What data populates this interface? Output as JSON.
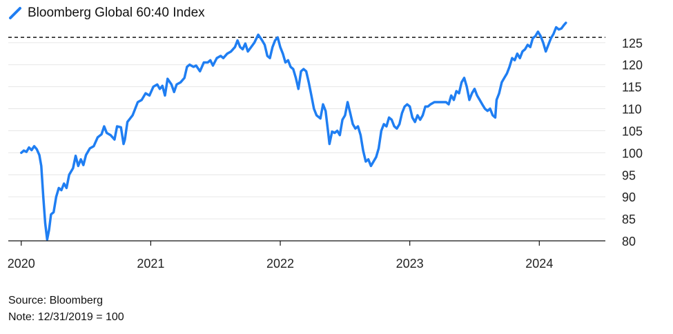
{
  "chart_data": {
    "type": "line",
    "title": "",
    "xlabel": "",
    "ylabel": "",
    "series": [
      {
        "name": "Bloomberg Global 60:40 Index",
        "color": "#1f7ef2",
        "points": [
          [
            2020.0,
            100.0
          ],
          [
            2020.02,
            100.5
          ],
          [
            2020.04,
            100.2
          ],
          [
            2020.06,
            101.2
          ],
          [
            2020.08,
            100.6
          ],
          [
            2020.1,
            101.5
          ],
          [
            2020.12,
            100.8
          ],
          [
            2020.14,
            99.5
          ],
          [
            2020.155,
            97.0
          ],
          [
            2020.17,
            90.0
          ],
          [
            2020.185,
            84.0
          ],
          [
            2020.2,
            80.3
          ],
          [
            2020.215,
            82.5
          ],
          [
            2020.23,
            86.0
          ],
          [
            2020.25,
            86.5
          ],
          [
            2020.27,
            90.0
          ],
          [
            2020.29,
            92.0
          ],
          [
            2020.31,
            91.5
          ],
          [
            2020.33,
            93.0
          ],
          [
            2020.35,
            92.0
          ],
          [
            2020.37,
            95.0
          ],
          [
            2020.4,
            96.5
          ],
          [
            2020.42,
            99.3
          ],
          [
            2020.44,
            97.0
          ],
          [
            2020.46,
            98.5
          ],
          [
            2020.48,
            97.2
          ],
          [
            2020.5,
            99.5
          ],
          [
            2020.53,
            101.0
          ],
          [
            2020.56,
            101.5
          ],
          [
            2020.59,
            103.5
          ],
          [
            2020.62,
            104.2
          ],
          [
            2020.64,
            106.0
          ],
          [
            2020.66,
            104.5
          ],
          [
            2020.69,
            104.0
          ],
          [
            2020.72,
            103.0
          ],
          [
            2020.74,
            106.0
          ],
          [
            2020.77,
            105.8
          ],
          [
            2020.79,
            102.0
          ],
          [
            2020.8,
            103.0
          ],
          [
            2020.82,
            107.0
          ],
          [
            2020.86,
            108.5
          ],
          [
            2020.9,
            111.5
          ],
          [
            2020.93,
            112.0
          ],
          [
            2020.96,
            113.5
          ],
          [
            2020.99,
            113.0
          ],
          [
            2021.02,
            115.0
          ],
          [
            2021.05,
            115.5
          ],
          [
            2021.07,
            114.5
          ],
          [
            2021.09,
            115.2
          ],
          [
            2021.11,
            113.0
          ],
          [
            2021.13,
            116.8
          ],
          [
            2021.16,
            115.5
          ],
          [
            2021.18,
            113.8
          ],
          [
            2021.2,
            115.5
          ],
          [
            2021.23,
            116.0
          ],
          [
            2021.26,
            117.0
          ],
          [
            2021.28,
            119.5
          ],
          [
            2021.3,
            120.0
          ],
          [
            2021.33,
            119.5
          ],
          [
            2021.35,
            119.8
          ],
          [
            2021.38,
            118.5
          ],
          [
            2021.41,
            120.5
          ],
          [
            2021.44,
            120.5
          ],
          [
            2021.46,
            121.0
          ],
          [
            2021.48,
            119.8
          ],
          [
            2021.51,
            121.5
          ],
          [
            2021.54,
            122.0
          ],
          [
            2021.56,
            121.5
          ],
          [
            2021.59,
            122.5
          ],
          [
            2021.62,
            123.0
          ],
          [
            2021.65,
            124.0
          ],
          [
            2021.67,
            125.5
          ],
          [
            2021.69,
            124.0
          ],
          [
            2021.71,
            123.5
          ],
          [
            2021.73,
            124.8
          ],
          [
            2021.75,
            123.0
          ],
          [
            2021.77,
            123.8
          ],
          [
            2021.8,
            125.0
          ],
          [
            2021.83,
            126.8
          ],
          [
            2021.86,
            125.5
          ],
          [
            2021.88,
            124.5
          ],
          [
            2021.9,
            122.0
          ],
          [
            2021.92,
            121.5
          ],
          [
            2021.94,
            124.0
          ],
          [
            2021.96,
            125.5
          ],
          [
            2021.98,
            126.2
          ],
          [
            2022.0,
            124.0
          ],
          [
            2022.02,
            122.5
          ],
          [
            2022.04,
            120.5
          ],
          [
            2022.06,
            121.0
          ],
          [
            2022.08,
            119.5
          ],
          [
            2022.1,
            119.0
          ],
          [
            2022.12,
            117.0
          ],
          [
            2022.14,
            114.5
          ],
          [
            2022.16,
            118.5
          ],
          [
            2022.18,
            119.0
          ],
          [
            2022.2,
            118.5
          ],
          [
            2022.22,
            116.0
          ],
          [
            2022.24,
            113.0
          ],
          [
            2022.26,
            110.0
          ],
          [
            2022.28,
            108.5
          ],
          [
            2022.31,
            107.8
          ],
          [
            2022.33,
            111.0
          ],
          [
            2022.35,
            109.5
          ],
          [
            2022.37,
            104.5
          ],
          [
            2022.38,
            102.0
          ],
          [
            2022.4,
            104.8
          ],
          [
            2022.42,
            104.5
          ],
          [
            2022.44,
            105.0
          ],
          [
            2022.46,
            104.0
          ],
          [
            2022.48,
            107.5
          ],
          [
            2022.5,
            108.5
          ],
          [
            2022.52,
            111.5
          ],
          [
            2022.54,
            109.0
          ],
          [
            2022.56,
            106.5
          ],
          [
            2022.58,
            105.5
          ],
          [
            2022.6,
            106.0
          ],
          [
            2022.62,
            104.0
          ],
          [
            2022.64,
            100.5
          ],
          [
            2022.66,
            98.0
          ],
          [
            2022.68,
            98.5
          ],
          [
            2022.7,
            97.0
          ],
          [
            2022.72,
            98.0
          ],
          [
            2022.74,
            99.0
          ],
          [
            2022.76,
            101.0
          ],
          [
            2022.78,
            105.0
          ],
          [
            2022.8,
            106.5
          ],
          [
            2022.82,
            106.0
          ],
          [
            2022.84,
            108.0
          ],
          [
            2022.86,
            107.5
          ],
          [
            2022.88,
            106.0
          ],
          [
            2022.9,
            105.5
          ],
          [
            2022.92,
            106.5
          ],
          [
            2022.94,
            109.0
          ],
          [
            2022.96,
            110.5
          ],
          [
            2022.98,
            111.0
          ],
          [
            2023.0,
            110.5
          ],
          [
            2023.02,
            108.0
          ],
          [
            2023.04,
            107.0
          ],
          [
            2023.06,
            108.5
          ],
          [
            2023.08,
            107.5
          ],
          [
            2023.1,
            108.5
          ],
          [
            2023.12,
            110.5
          ],
          [
            2023.14,
            110.5
          ],
          [
            2023.16,
            111.0
          ],
          [
            2023.19,
            111.5
          ],
          [
            2023.22,
            111.5
          ],
          [
            2023.25,
            111.5
          ],
          [
            2023.28,
            111.5
          ],
          [
            2023.3,
            111.0
          ],
          [
            2023.32,
            113.0
          ],
          [
            2023.34,
            112.0
          ],
          [
            2023.36,
            114.0
          ],
          [
            2023.38,
            113.5
          ],
          [
            2023.4,
            116.0
          ],
          [
            2023.42,
            117.0
          ],
          [
            2023.44,
            115.0
          ],
          [
            2023.46,
            112.0
          ],
          [
            2023.48,
            113.5
          ],
          [
            2023.5,
            114.5
          ],
          [
            2023.52,
            113.0
          ],
          [
            2023.54,
            112.0
          ],
          [
            2023.56,
            111.0
          ],
          [
            2023.58,
            110.0
          ],
          [
            2023.6,
            109.5
          ],
          [
            2023.62,
            110.0
          ],
          [
            2023.64,
            108.5
          ],
          [
            2023.66,
            108.0
          ],
          [
            2023.67,
            112.0
          ],
          [
            2023.69,
            113.5
          ],
          [
            2023.71,
            116.0
          ],
          [
            2023.73,
            117.0
          ],
          [
            2023.75,
            118.0
          ],
          [
            2023.77,
            119.5
          ],
          [
            2023.79,
            121.5
          ],
          [
            2023.81,
            121.0
          ],
          [
            2023.83,
            122.5
          ],
          [
            2023.85,
            121.5
          ],
          [
            2023.87,
            123.0
          ],
          [
            2023.89,
            123.5
          ],
          [
            2023.91,
            124.5
          ],
          [
            2023.93,
            124.0
          ],
          [
            2023.95,
            126.0
          ],
          [
            2023.97,
            126.5
          ],
          [
            2023.99,
            127.5
          ],
          [
            2024.01,
            126.5
          ],
          [
            2024.03,
            125.0
          ],
          [
            2024.05,
            123.0
          ],
          [
            2024.07,
            124.5
          ],
          [
            2024.09,
            126.0
          ],
          [
            2024.11,
            127.0
          ],
          [
            2024.13,
            128.5
          ],
          [
            2024.15,
            128.0
          ],
          [
            2024.17,
            128.2
          ],
          [
            2024.19,
            129.0
          ],
          [
            2024.205,
            129.5
          ]
        ]
      }
    ],
    "x_ticks": [
      {
        "value": 2020,
        "label": "2020"
      },
      {
        "value": 2021,
        "label": "2021"
      },
      {
        "value": 2022,
        "label": "2022"
      },
      {
        "value": 2023,
        "label": "2023"
      },
      {
        "value": 2024,
        "label": "2024"
      }
    ],
    "y_ticks": [
      80,
      85,
      90,
      95,
      100,
      105,
      110,
      115,
      120,
      125
    ],
    "xlim": [
      2019.9,
      2024.51
    ],
    "ylim": [
      80,
      130.3
    ],
    "reference_line": {
      "value": 126.2,
      "style": "dashed"
    },
    "grid": "horizontal",
    "y_axis_position": "right",
    "legend": {
      "label": "Bloomberg Global 60:40 Index",
      "position": "top-left"
    }
  },
  "footer": {
    "source": "Source: Bloomberg",
    "note": "Note: 12/31/2019 = 100"
  }
}
